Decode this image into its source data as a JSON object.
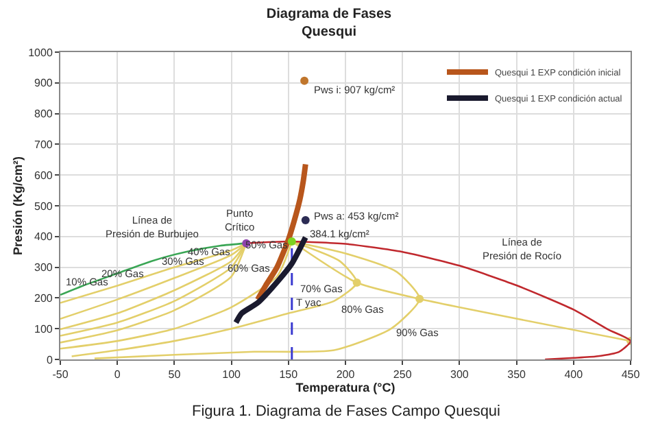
{
  "chart_data": {
    "type": "line",
    "title": "Diagrama de Fases\nQuesqui",
    "xlabel": "Temperatura (°C)",
    "ylabel": "Presión (Kg/cm²)",
    "xlim": [
      -50,
      450
    ],
    "xticks": [
      -50,
      0,
      50,
      100,
      150,
      200,
      250,
      300,
      350,
      400,
      450
    ],
    "ylim": [
      0,
      1000
    ],
    "yticks": [
      0,
      100,
      200,
      300,
      400,
      500,
      600,
      700,
      800,
      900,
      1000
    ],
    "grid": true,
    "legend": "top right",
    "series": [
      {
        "color": "#e3cf6a",
        "x": [
          -50,
          0,
          50,
          100,
          113
        ],
        "values": [
          184,
          240,
          300,
          355,
          378
        ]
      },
      {
        "color": "#e3cf6a",
        "x": [
          -50,
          0,
          50,
          100,
          113
        ],
        "values": [
          132,
          195,
          265,
          340,
          378
        ]
      },
      {
        "color": "#e3cf6a",
        "x": [
          -50,
          0,
          50,
          100,
          113
        ],
        "values": [
          98,
          150,
          225,
          320,
          378
        ]
      },
      {
        "color": "#e3cf6a",
        "x": [
          -50,
          0,
          50,
          100,
          113
        ],
        "values": [
          77,
          120,
          190,
          300,
          378
        ]
      },
      {
        "color": "#e3cf6a",
        "x": [
          -50,
          0,
          50,
          100,
          113
        ],
        "values": [
          55,
          95,
          160,
          270,
          378
        ]
      },
      {
        "color": "#e3cf6a",
        "x": [
          -50,
          0,
          50,
          100,
          140,
          153
        ],
        "values": [
          35,
          60,
          100,
          170,
          270,
          384
        ]
      },
      {
        "color": "#e3cf6a",
        "x": [
          -40,
          0,
          50,
          100,
          150,
          190,
          210,
          195,
          153
        ],
        "values": [
          10,
          30,
          60,
          100,
          150,
          190,
          250,
          320,
          384
        ]
      },
      {
        "color": "#e3cf6a",
        "x": [
          -20,
          50,
          120,
          190,
          240,
          265,
          245,
          200,
          153
        ],
        "values": [
          3,
          15,
          25,
          30,
          100,
          197,
          285,
          345,
          384
        ]
      },
      {
        "color": "#e3cf6a",
        "type": "scatter",
        "x": [
          210,
          265,
          450
        ],
        "values": [
          250,
          197,
          60
        ]
      },
      {
        "color": "#e3cf6a",
        "x": [
          153,
          210,
          265,
          450
        ],
        "values": [
          384,
          250,
          197,
          60
        ]
      },
      {
        "color": "#3aa655",
        "x": [
          -50,
          -30,
          0,
          30,
          60,
          90,
          113
        ],
        "values": [
          210,
          240,
          280,
          320,
          350,
          370,
          378
        ]
      },
      {
        "color": "#c0282d",
        "x": [
          113,
          150,
          200,
          250,
          300,
          350,
          400,
          430,
          450,
          440,
          420,
          400,
          375
        ],
        "values": [
          378,
          384,
          376,
          350,
          305,
          241,
          162,
          98,
          60,
          25,
          10,
          5,
          0
        ]
      },
      {
        "color": "#3a3ad0",
        "line_style": "dashed",
        "x": [
          153,
          153
        ],
        "values": [
          0,
          384
        ]
      },
      {
        "name": "Quesqui 1 EXP condición inicial",
        "color": "#b8561c",
        "x": [
          123,
          130,
          140,
          150,
          155,
          160,
          163,
          165
        ],
        "values": [
          195,
          240,
          300,
          390,
          450,
          520,
          580,
          635
        ]
      },
      {
        "name": "Quesqui 1 EXP condición actual",
        "color": "#1a1a2e",
        "x": [
          104,
          109,
          123,
          141,
          153,
          165
        ],
        "values": [
          120,
          150,
          184,
          256,
          312,
          397
        ]
      },
      {
        "color": "#8e44ad",
        "type": "scatter",
        "x": [
          113
        ],
        "values": [
          378
        ]
      },
      {
        "color": "#7ed321",
        "type": "scatter",
        "x": [
          153
        ],
        "values": [
          384
        ]
      },
      {
        "color": "#c0762c",
        "type": "scatter",
        "x": [
          164
        ],
        "values": [
          907
        ]
      },
      {
        "color": "#2c2c54",
        "type": "scatter",
        "x": [
          165
        ],
        "values": [
          453
        ]
      }
    ],
    "annotations": [
      "10% Gas",
      "20% Gas",
      "30% Gas",
      "40% Gas",
      "50% Gas",
      "60% Gas",
      "70% Gas",
      "T yac",
      "80% Gas",
      "90% Gas",
      "Línea de\nPresión de Burbujeo",
      "Punto\nCrítico",
      "384.1 kg/cm²",
      "Pws i: 907 kg/cm²",
      "Pws a: 453 kg/cm²",
      "Línea de\nPresión de Rocío",
      "Figura 1. Diagrama de Fases Campo Quesqui"
    ]
  }
}
